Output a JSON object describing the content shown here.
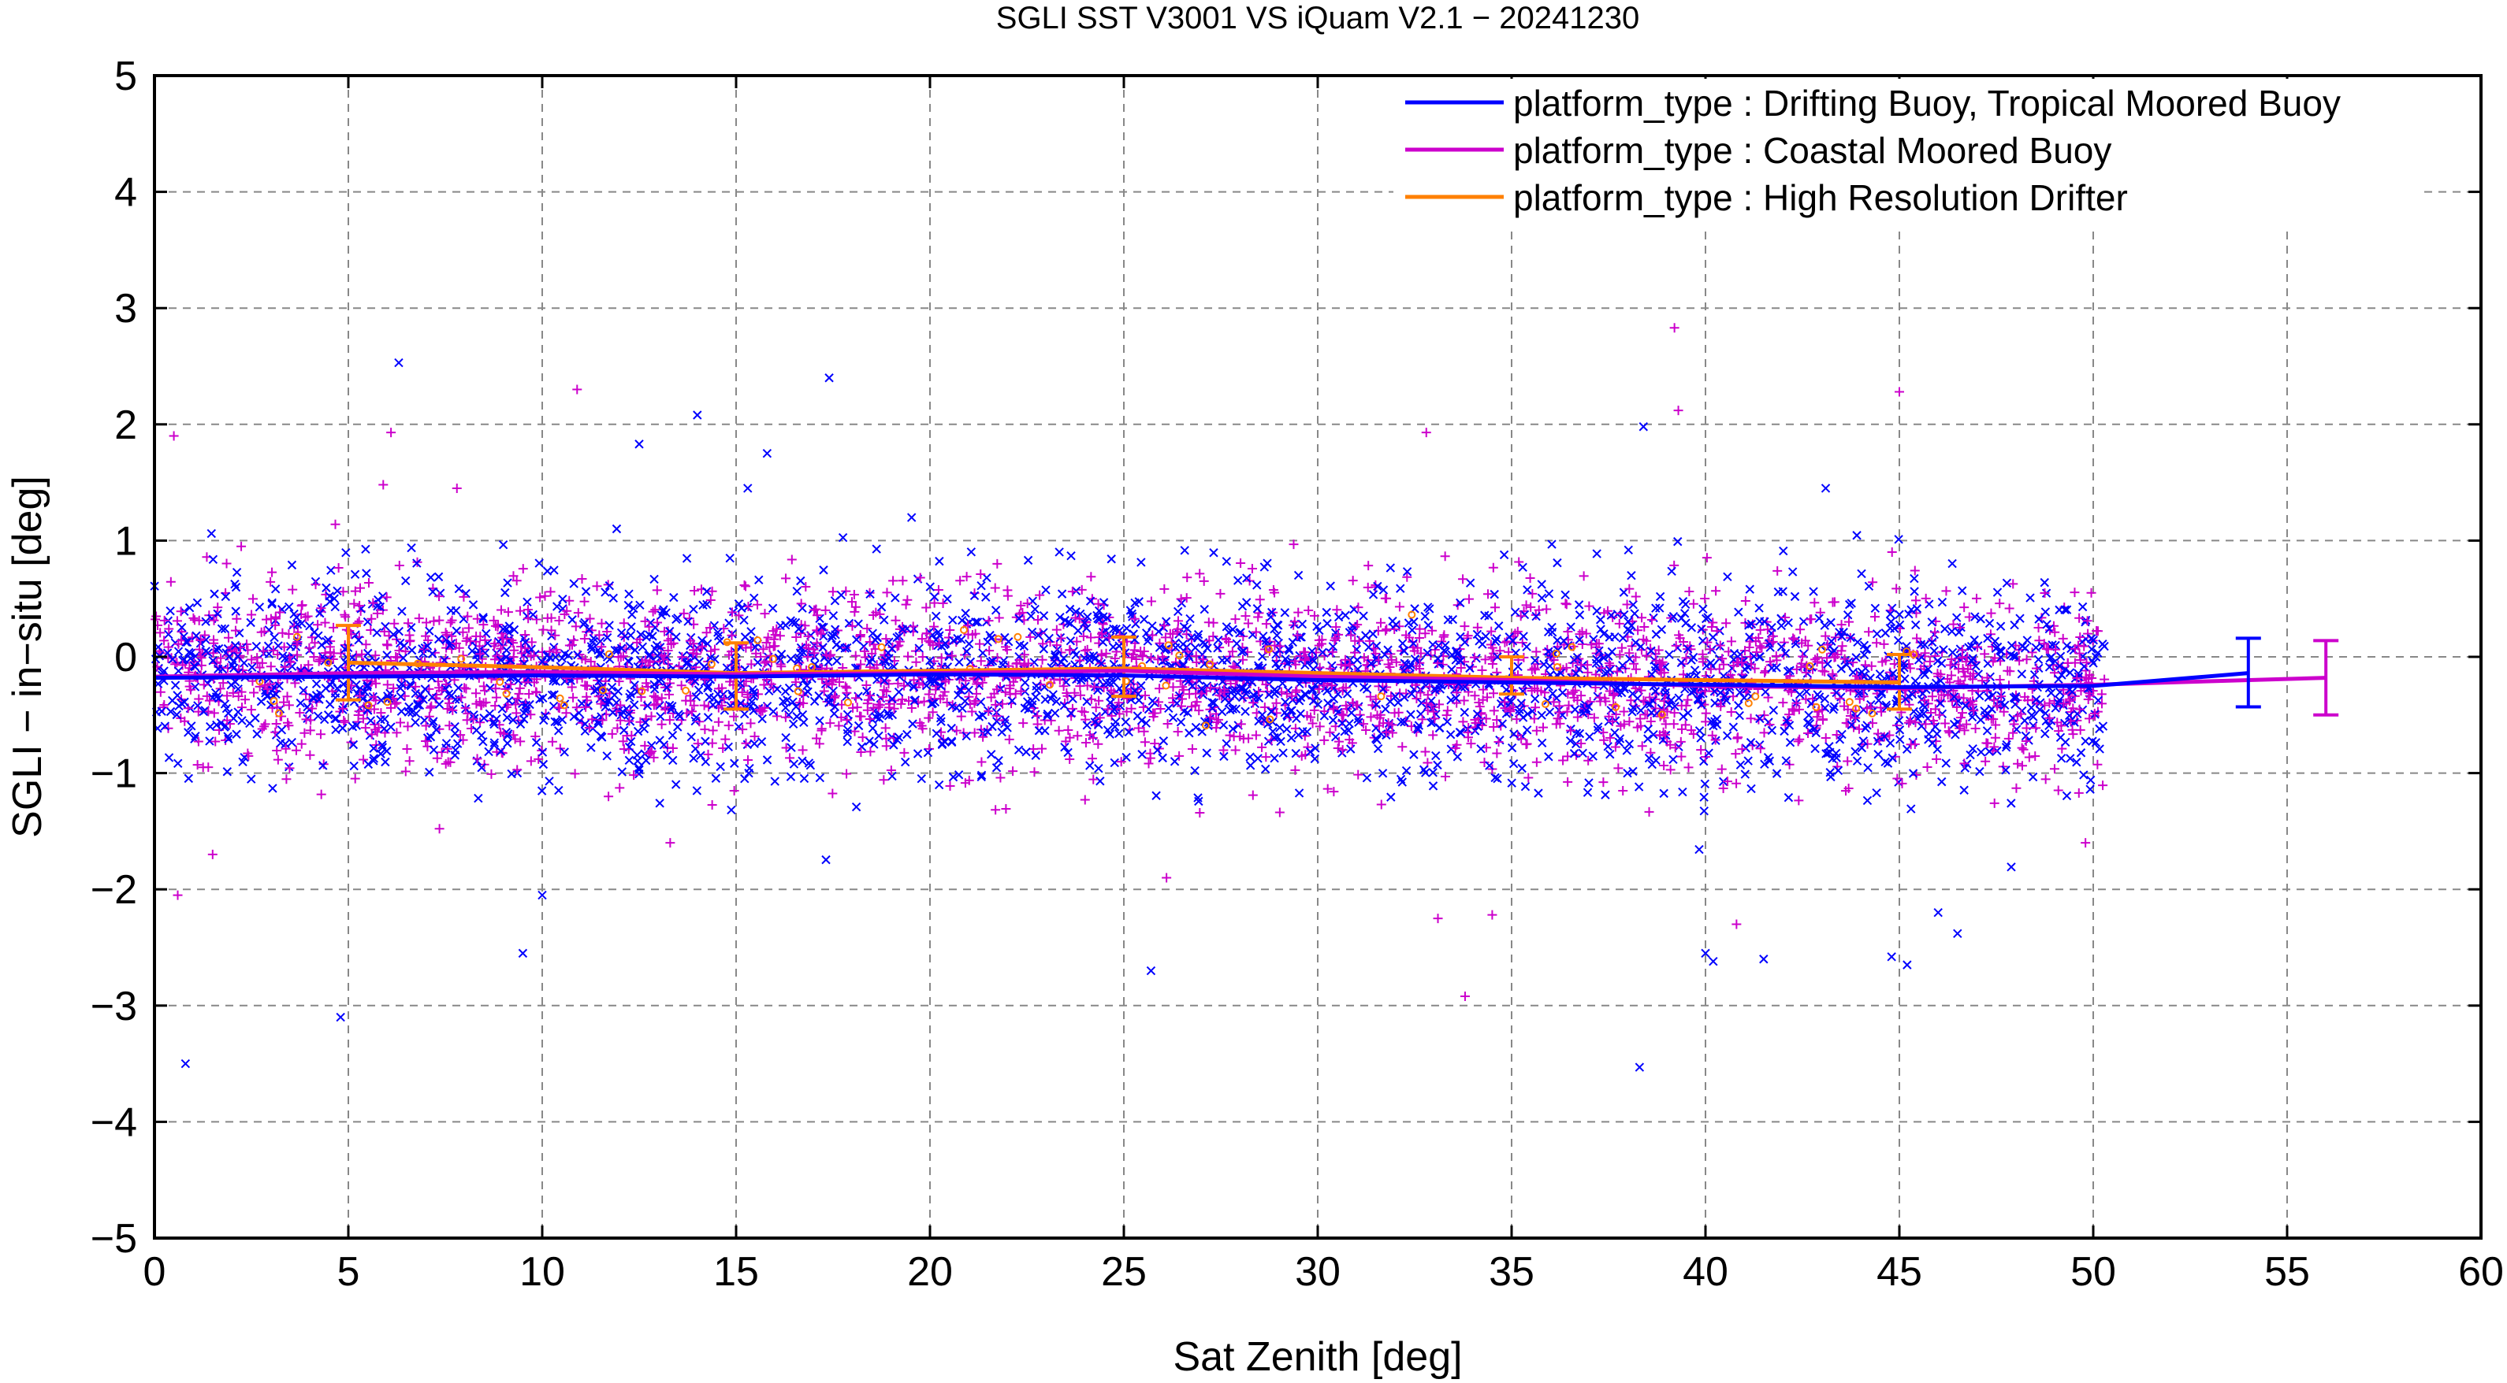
{
  "chart_data": {
    "type": "scatter",
    "title": "SGLI SST V3001 VS iQuam V2.1  − 20241230",
    "xlabel": "Sat Zenith [deg]",
    "ylabel": "SGLI − in−situ [deg]",
    "xlim": [
      0,
      60
    ],
    "ylim": [
      -5,
      5
    ],
    "x_ticks": [
      0,
      5,
      10,
      15,
      20,
      25,
      30,
      35,
      40,
      45,
      50,
      55,
      60
    ],
    "y_ticks": [
      5,
      4,
      3,
      2,
      1,
      0,
      -1,
      -2,
      -3,
      -4,
      -5
    ],
    "x_tick_labels": [
      "0",
      "5",
      "10",
      "15",
      "20",
      "25",
      "30",
      "35",
      "40",
      "45",
      "50",
      "55",
      "60"
    ],
    "y_tick_labels": [
      "5",
      "4",
      "3",
      "2",
      "1",
      "0",
      "−1",
      "−2",
      "−3",
      "−4",
      "−5"
    ],
    "grid": true,
    "grid_style": "dashed",
    "legend_position": "top-right",
    "series": [
      {
        "name": "platform_type : Drifting Buoy, Tropical Moored Buoy",
        "color": "#0000ff",
        "marker": "x",
        "mean_line": {
          "x": [
            0,
            5,
            10,
            15,
            20,
            25,
            30,
            35,
            40,
            45,
            50,
            54
          ],
          "y": [
            -0.18,
            -0.17,
            -0.16,
            -0.17,
            -0.15,
            -0.16,
            -0.2,
            -0.22,
            -0.24,
            -0.26,
            -0.25,
            -0.14
          ]
        },
        "error_bar": {
          "x": 54,
          "mean": -0.14,
          "low": -0.43,
          "high": 0.16
        },
        "outliers": [
          {
            "x": 0.8,
            "y": -3.5
          },
          {
            "x": 4.8,
            "y": -3.1
          },
          {
            "x": 6.3,
            "y": 2.53
          },
          {
            "x": 9.5,
            "y": -2.55
          },
          {
            "x": 10.0,
            "y": -2.05
          },
          {
            "x": 12.5,
            "y": 1.83
          },
          {
            "x": 14.0,
            "y": 2.08
          },
          {
            "x": 15.3,
            "y": 1.45
          },
          {
            "x": 15.8,
            "y": 1.75
          },
          {
            "x": 17.4,
            "y": 2.4
          },
          {
            "x": 25.7,
            "y": -2.7
          },
          {
            "x": 38.3,
            "y": -3.53
          },
          {
            "x": 38.4,
            "y": 1.98
          },
          {
            "x": 40.0,
            "y": -2.55
          },
          {
            "x": 40.2,
            "y": -2.62
          },
          {
            "x": 41.5,
            "y": -2.6
          },
          {
            "x": 43.1,
            "y": 1.45
          },
          {
            "x": 44.8,
            "y": -2.58
          },
          {
            "x": 45.2,
            "y": -2.65
          },
          {
            "x": 46.0,
            "y": -2.2
          },
          {
            "x": 46.5,
            "y": -2.38
          }
        ]
      },
      {
        "name": "platform_type : Coastal Moored Buoy",
        "color": "#cc00cc",
        "marker": "+",
        "mean_line": {
          "x": [
            0,
            5,
            10,
            15,
            20,
            25,
            30,
            35,
            40,
            45,
            50,
            56
          ],
          "y": [
            -0.17,
            -0.14,
            -0.13,
            -0.15,
            -0.14,
            -0.12,
            -0.17,
            -0.2,
            -0.25,
            -0.27,
            -0.24,
            -0.18
          ]
        },
        "error_bar": {
          "x": 56,
          "mean": -0.18,
          "low": -0.5,
          "high": 0.14
        },
        "outliers": [
          {
            "x": 0.5,
            "y": 1.9
          },
          {
            "x": 0.6,
            "y": -2.05
          },
          {
            "x": 1.5,
            "y": -1.7
          },
          {
            "x": 5.9,
            "y": 1.48
          },
          {
            "x": 6.1,
            "y": 1.93
          },
          {
            "x": 7.8,
            "y": 1.45
          },
          {
            "x": 10.9,
            "y": 2.3
          },
          {
            "x": 13.3,
            "y": -1.6
          },
          {
            "x": 26.1,
            "y": -1.9
          },
          {
            "x": 32.8,
            "y": 1.93
          },
          {
            "x": 33.1,
            "y": -2.25
          },
          {
            "x": 33.8,
            "y": -2.92
          },
          {
            "x": 34.5,
            "y": -2.22
          },
          {
            "x": 39.2,
            "y": 2.83
          },
          {
            "x": 39.3,
            "y": 2.12
          },
          {
            "x": 40.8,
            "y": -2.3
          },
          {
            "x": 45.0,
            "y": 2.28
          },
          {
            "x": 49.8,
            "y": -1.6
          }
        ]
      },
      {
        "name": "platform_type : High Resolution Drifter",
        "color": "#ff8000",
        "marker": "o",
        "mean_line": {
          "x": [
            5,
            10,
            15,
            20,
            25,
            30,
            35,
            40,
            45
          ],
          "y": [
            -0.05,
            -0.09,
            -0.14,
            -0.12,
            -0.1,
            -0.14,
            -0.18,
            -0.2,
            -0.22
          ]
        },
        "error_bars": [
          {
            "x": 5,
            "mean": -0.05,
            "low": -0.37,
            "high": 0.27
          },
          {
            "x": 15,
            "mean": -0.14,
            "low": -0.45,
            "high": 0.12
          },
          {
            "x": 25,
            "mean": -0.1,
            "low": -0.34,
            "high": 0.17
          },
          {
            "x": 35,
            "mean": -0.18,
            "low": -0.32,
            "high": 0.0
          },
          {
            "x": 45,
            "mean": -0.22,
            "low": -0.45,
            "high": 0.02
          }
        ]
      }
    ],
    "scatter_bulk": {
      "x_range": [
        0,
        50.3
      ],
      "y_center_per_5deg": [
        -0.15,
        -0.14,
        -0.15,
        -0.16,
        -0.14,
        -0.15,
        -0.18,
        -0.2,
        -0.22,
        -0.24,
        -0.22
      ],
      "y_spread_sd": 0.4,
      "note_points_per_series": 2600
    }
  }
}
